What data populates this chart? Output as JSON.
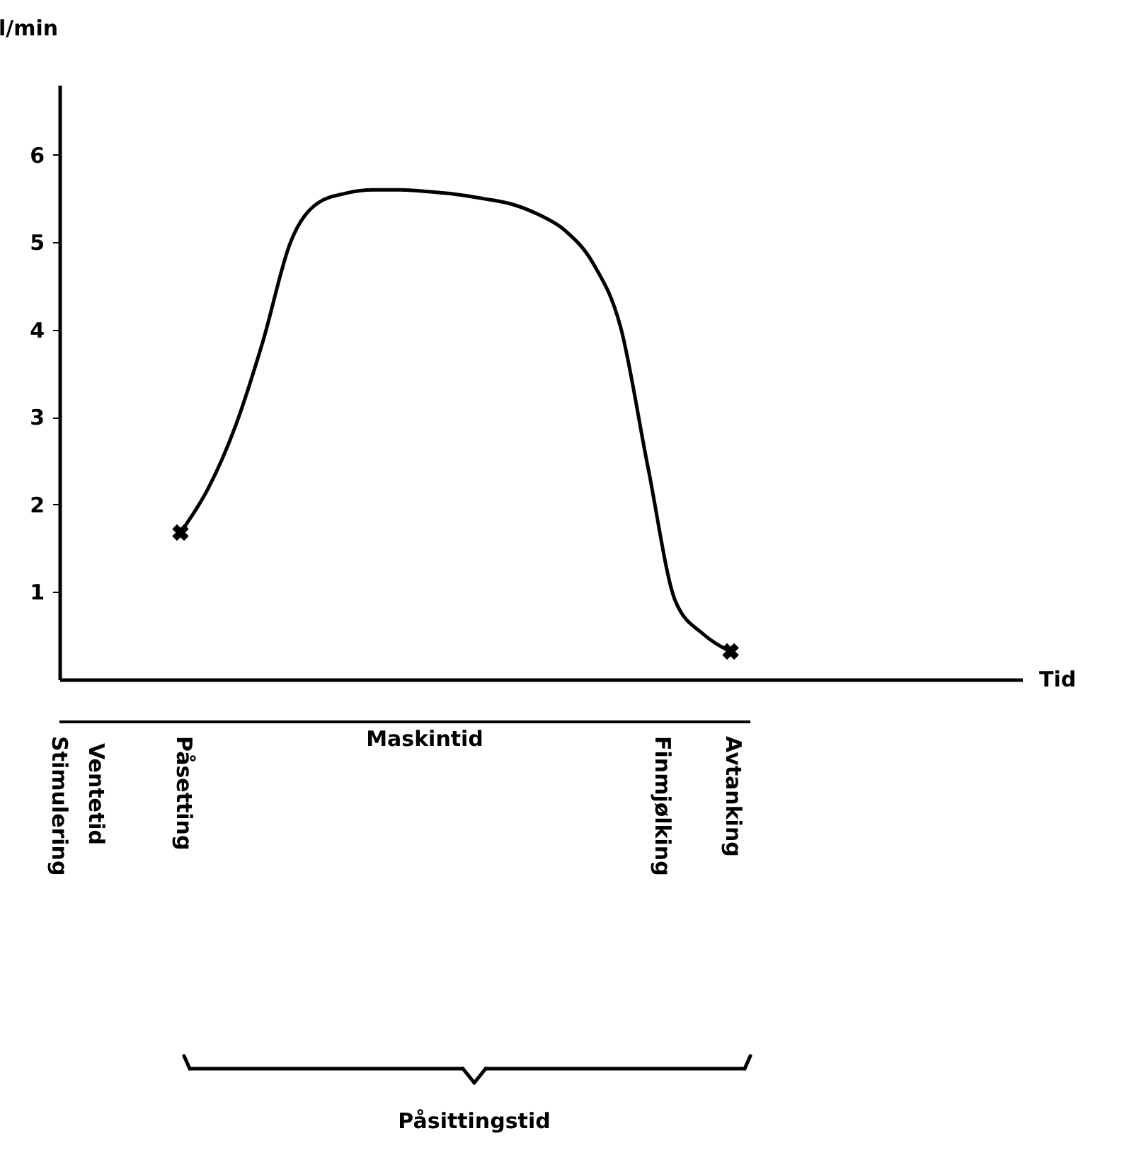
{
  "chart_data": {
    "type": "line",
    "xlabel": "Tid",
    "ylabel": "l/min",
    "categories": [
      null,
      null,
      null,
      null,
      null,
      null,
      null,
      null,
      null,
      null,
      null,
      null,
      null,
      null,
      null,
      null,
      null,
      null,
      null,
      null,
      null,
      null,
      null,
      null,
      null,
      null,
      null,
      null,
      null,
      null,
      null,
      null,
      null,
      null,
      null
    ],
    "series": [
      {
        "color": "#000000",
        "line_style": "solid",
        "values": [
          null,
          null,
          null,
          null,
          1.68,
          2.18,
          2.9,
          3.87,
          5.0,
          5.45,
          5.56,
          5.6,
          5.6,
          5.58,
          5.55,
          5.5,
          5.44,
          5.32,
          5.13,
          4.76,
          4.03,
          2.42,
          0.89,
          0.52,
          0.32,
          null,
          null,
          null,
          null,
          null,
          null,
          null,
          null,
          null,
          null
        ]
      },
      {
        "type": "scatter",
        "color": "#000000",
        "marker": "cross",
        "values": [
          null,
          null,
          null,
          null,
          1.68,
          null,
          null,
          null,
          null,
          null,
          null,
          null,
          null,
          null,
          null,
          null,
          null,
          null,
          null,
          null,
          null,
          null,
          null,
          null,
          0.32,
          null,
          null,
          null,
          null,
          null,
          null,
          null,
          null,
          null,
          null
        ]
      }
    ],
    "ylim": [
      0,
      6.8
    ],
    "yticks": [
      1,
      2,
      3,
      4,
      5,
      6
    ],
    "grid": false,
    "tick_labels": "y",
    "annotations": [
      "Stimulering",
      "Ventetid",
      "Påsetting",
      "Maskintid",
      "Finmjølking",
      "Avtanking",
      "Påsittingstid"
    ]
  }
}
